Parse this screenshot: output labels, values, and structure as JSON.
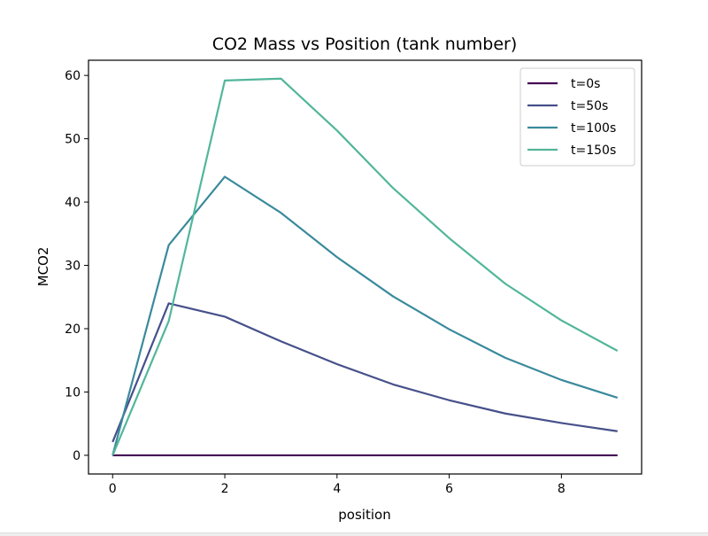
{
  "chart_data": {
    "type": "line",
    "title": "CO2 Mass vs Position (tank number)",
    "xlabel": "position",
    "ylabel": "MCO2",
    "xlim": [
      -0.43,
      9.43
    ],
    "ylim": [
      -2.95,
      62.4
    ],
    "xticks": [
      0,
      2,
      4,
      6,
      8
    ],
    "yticks": [
      0,
      10,
      20,
      30,
      40,
      50,
      60
    ],
    "grid": false,
    "legend_position": "top-right",
    "x": [
      0,
      1,
      2,
      3,
      4,
      5,
      6,
      7,
      8,
      9
    ],
    "series": [
      {
        "name": "t=0s",
        "color": "#440154",
        "values": [
          0,
          0,
          0,
          0,
          0,
          0,
          0,
          0,
          0,
          0
        ]
      },
      {
        "name": "t=50s",
        "color": "#46508a",
        "values": [
          2.1,
          24.0,
          21.9,
          18.0,
          14.4,
          11.2,
          8.7,
          6.6,
          5.1,
          3.8
        ]
      },
      {
        "name": "t=100s",
        "color": "#3a8a9c",
        "values": [
          0,
          33.2,
          44.0,
          38.3,
          31.3,
          25.1,
          19.9,
          15.4,
          11.9,
          9.1
        ]
      },
      {
        "name": "t=150s",
        "color": "#52b69a",
        "values": [
          0,
          21.2,
          59.2,
          59.5,
          51.3,
          42.2,
          34.3,
          27.1,
          21.3,
          16.5
        ]
      }
    ]
  }
}
